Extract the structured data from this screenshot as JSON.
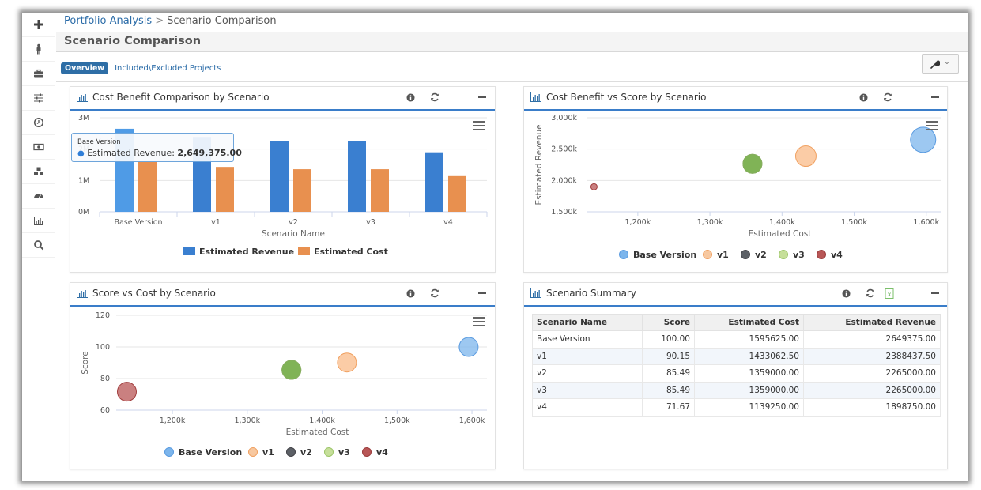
{
  "breadcrumb": {
    "parent": "Portfolio Analysis",
    "separator": ">",
    "current": "Scenario Comparison"
  },
  "page_title": "Scenario Comparison",
  "tabs": [
    {
      "label": "Overview",
      "active": true
    },
    {
      "label": "Included\\Excluded Projects",
      "active": false
    }
  ],
  "sidebar": {
    "items": [
      {
        "icon": "plus-icon"
      },
      {
        "icon": "person-icon"
      },
      {
        "icon": "briefcase-icon"
      },
      {
        "icon": "sliders-icon"
      },
      {
        "icon": "clock-icon"
      },
      {
        "icon": "money-icon"
      },
      {
        "icon": "cubes-icon"
      },
      {
        "icon": "dashboard-icon"
      },
      {
        "icon": "bar-chart-icon"
      },
      {
        "icon": "search-icon"
      }
    ]
  },
  "toolbar": {
    "tools_icon": "wrench-icon",
    "caret": "⌄"
  },
  "colors": {
    "accent": "#3a7dc9",
    "revenue": "#3a7fd0",
    "cost": "#e8904f",
    "base": "#7cb5ec",
    "v1": "#f7a35c",
    "v2": "#434348",
    "v3": "#90ed7d",
    "v4": "#b34a4a",
    "v2_marker": "#7a9a45"
  },
  "panels": {
    "bar": {
      "title": "Cost Benefit Comparison by Scenario",
      "tooltip": {
        "title": "Base Version",
        "series": "Estimated Revenue:",
        "value": "2,649,375.00"
      }
    },
    "rev_vs_cost": {
      "title": "Cost Benefit vs Score by Scenario"
    },
    "score_vs_cost": {
      "title": "Score vs Cost by Scenario"
    },
    "summary": {
      "title": "Scenario Summary",
      "columns": [
        "Scenario Name",
        "Score",
        "Estimated Cost",
        "Estimated Revenue"
      ],
      "rows": [
        [
          "Base Version",
          "100.00",
          "1595625.00",
          "2649375.00"
        ],
        [
          "v1",
          "90.15",
          "1433062.50",
          "2388437.50"
        ],
        [
          "v2",
          "85.49",
          "1359000.00",
          "2265000.00"
        ],
        [
          "v3",
          "85.49",
          "1359000.00",
          "2265000.00"
        ],
        [
          "v4",
          "71.67",
          "1139250.00",
          "1898750.00"
        ]
      ]
    }
  },
  "chart_data": [
    {
      "type": "bar",
      "title": "Cost Benefit Comparison by Scenario",
      "categories": [
        "Base Version",
        "v1",
        "v2",
        "v3",
        "v4"
      ],
      "series": [
        {
          "name": "Estimated Revenue",
          "values": [
            2649375,
            2388437.5,
            2265000,
            2265000,
            1898750
          ]
        },
        {
          "name": "Estimated Cost",
          "values": [
            1595625,
            1433062.5,
            1359000,
            1359000,
            1139250
          ]
        }
      ],
      "xlabel": "Scenario Name",
      "ylabel": "",
      "ylim": [
        0,
        3000000
      ],
      "yticks": [
        "0M",
        "1M",
        "2M",
        "3M"
      ],
      "legend": "bottom-center"
    },
    {
      "type": "scatter",
      "title": "Cost Benefit vs Score by Scenario",
      "xlabel": "Estimated Cost",
      "ylabel": "Estimated Revenue",
      "xlim": [
        1130000,
        1620000
      ],
      "ylim": [
        1500000,
        3000000
      ],
      "xticks": [
        "1,200k",
        "1,300k",
        "1,400k",
        "1,500k",
        "1,600k"
      ],
      "xtick_values": [
        1200000,
        1300000,
        1400000,
        1500000,
        1600000
      ],
      "yticks": [
        "1,500k",
        "2,000k",
        "2,500k",
        "3,000k"
      ],
      "ytick_values": [
        1500000,
        2000000,
        2500000,
        3000000
      ],
      "series": [
        {
          "name": "Base Version",
          "x": 1595625,
          "y": 2649375,
          "z": 100
        },
        {
          "name": "v1",
          "x": 1433062.5,
          "y": 2388437.5,
          "z": 90.15
        },
        {
          "name": "v2",
          "x": 1359000,
          "y": 2265000,
          "z": 85.49
        },
        {
          "name": "v3",
          "x": 1359000,
          "y": 2265000,
          "z": 85.49
        },
        {
          "name": "v4",
          "x": 1139250,
          "y": 1898750,
          "z": 71.67
        }
      ],
      "legend": "bottom-center"
    },
    {
      "type": "scatter",
      "title": "Score vs Cost by Scenario",
      "xlabel": "Estimated Cost",
      "ylabel": "Score",
      "xlim": [
        1125000,
        1620000
      ],
      "ylim": [
        60,
        120
      ],
      "xticks": [
        "1,200k",
        "1,300k",
        "1,400k",
        "1,500k",
        "1,600k"
      ],
      "xtick_values": [
        1200000,
        1300000,
        1400000,
        1500000,
        1600000
      ],
      "yticks": [
        "60",
        "80",
        "100",
        "120"
      ],
      "ytick_values": [
        60,
        80,
        100,
        120
      ],
      "series": [
        {
          "name": "Base Version",
          "x": 1595625,
          "y": 100
        },
        {
          "name": "v1",
          "x": 1433062.5,
          "y": 90.15
        },
        {
          "name": "v2",
          "x": 1359000,
          "y": 85.49
        },
        {
          "name": "v3",
          "x": 1359000,
          "y": 85.49
        },
        {
          "name": "v4",
          "x": 1139250,
          "y": 71.67
        }
      ],
      "legend": "bottom-center"
    }
  ]
}
